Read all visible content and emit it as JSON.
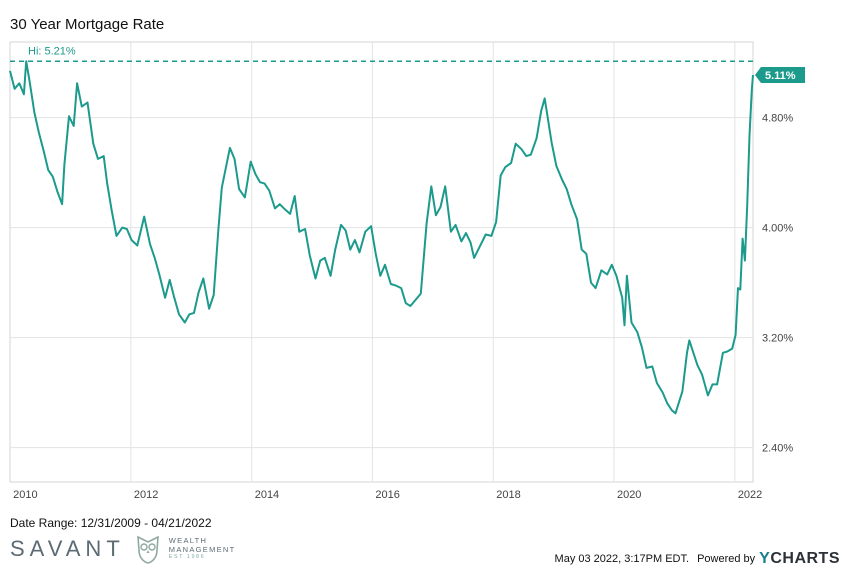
{
  "chart_data": {
    "type": "line",
    "title": "30 Year Mortgage Rate",
    "xlabel": "",
    "ylabel": "",
    "x_range": [
      "2009-12-31",
      "2022-04-21"
    ],
    "ylim": [
      2.15,
      5.35
    ],
    "y_ticks": [
      2.4,
      3.2,
      4.0,
      4.8
    ],
    "y_tick_labels": [
      "2.40%",
      "3.20%",
      "4.00%",
      "4.80%"
    ],
    "x_tick_labels": [
      "2010",
      "2012",
      "2014",
      "2016",
      "2018",
      "2020",
      "2022"
    ],
    "grid": true,
    "high": {
      "label": "Hi: 5.21%",
      "value": 5.21
    },
    "last": {
      "label": "5.11%",
      "value": 5.11
    },
    "series": [
      {
        "color": "#1c9a8c",
        "points": [
          [
            "2009-12-31",
            5.14
          ],
          [
            "2010-01-28",
            5.01
          ],
          [
            "2010-02-25",
            5.05
          ],
          [
            "2010-03-25",
            4.97
          ],
          [
            "2010-04-08",
            5.21
          ],
          [
            "2010-04-29",
            5.06
          ],
          [
            "2010-05-27",
            4.84
          ],
          [
            "2010-06-24",
            4.69
          ],
          [
            "2010-07-22",
            4.56
          ],
          [
            "2010-08-19",
            4.42
          ],
          [
            "2010-09-16",
            4.37
          ],
          [
            "2010-10-14",
            4.26
          ],
          [
            "2010-11-11",
            4.17
          ],
          [
            "2010-11-25",
            4.46
          ],
          [
            "2010-12-23",
            4.81
          ],
          [
            "2011-01-20",
            4.74
          ],
          [
            "2011-02-10",
            5.05
          ],
          [
            "2011-03-10",
            4.88
          ],
          [
            "2011-04-14",
            4.91
          ],
          [
            "2011-05-19",
            4.61
          ],
          [
            "2011-06-16",
            4.5
          ],
          [
            "2011-07-21",
            4.52
          ],
          [
            "2011-08-11",
            4.32
          ],
          [
            "2011-09-08",
            4.12
          ],
          [
            "2011-10-06",
            3.94
          ],
          [
            "2011-11-10",
            4.0
          ],
          [
            "2011-12-08",
            3.99
          ],
          [
            "2012-01-05",
            3.91
          ],
          [
            "2012-02-09",
            3.87
          ],
          [
            "2012-03-22",
            4.08
          ],
          [
            "2012-04-26",
            3.88
          ],
          [
            "2012-05-24",
            3.78
          ],
          [
            "2012-06-21",
            3.66
          ],
          [
            "2012-07-26",
            3.49
          ],
          [
            "2012-08-23",
            3.62
          ],
          [
            "2012-09-20",
            3.49
          ],
          [
            "2012-10-18",
            3.37
          ],
          [
            "2012-11-22",
            3.31
          ],
          [
            "2012-12-20",
            3.37
          ],
          [
            "2013-01-17",
            3.38
          ],
          [
            "2013-02-14",
            3.53
          ],
          [
            "2013-03-14",
            3.63
          ],
          [
            "2013-04-18",
            3.41
          ],
          [
            "2013-05-16",
            3.51
          ],
          [
            "2013-06-13",
            3.98
          ],
          [
            "2013-07-04",
            4.29
          ],
          [
            "2013-08-22",
            4.58
          ],
          [
            "2013-09-19",
            4.5
          ],
          [
            "2013-10-17",
            4.28
          ],
          [
            "2013-11-21",
            4.22
          ],
          [
            "2013-12-26",
            4.48
          ],
          [
            "2014-01-23",
            4.39
          ],
          [
            "2014-02-20",
            4.33
          ],
          [
            "2014-03-20",
            4.32
          ],
          [
            "2014-04-17",
            4.27
          ],
          [
            "2014-05-22",
            4.14
          ],
          [
            "2014-06-19",
            4.17
          ],
          [
            "2014-07-24",
            4.13
          ],
          [
            "2014-08-21",
            4.1
          ],
          [
            "2014-09-18",
            4.23
          ],
          [
            "2014-10-16",
            3.97
          ],
          [
            "2014-11-20",
            3.99
          ],
          [
            "2014-12-18",
            3.8
          ],
          [
            "2015-01-22",
            3.63
          ],
          [
            "2015-02-19",
            3.76
          ],
          [
            "2015-03-19",
            3.78
          ],
          [
            "2015-04-23",
            3.65
          ],
          [
            "2015-05-21",
            3.84
          ],
          [
            "2015-06-25",
            4.02
          ],
          [
            "2015-07-23",
            3.98
          ],
          [
            "2015-08-20",
            3.84
          ],
          [
            "2015-09-17",
            3.91
          ],
          [
            "2015-10-15",
            3.82
          ],
          [
            "2015-11-19",
            3.97
          ],
          [
            "2015-12-24",
            4.01
          ],
          [
            "2016-01-21",
            3.81
          ],
          [
            "2016-02-18",
            3.65
          ],
          [
            "2016-03-17",
            3.73
          ],
          [
            "2016-04-21",
            3.59
          ],
          [
            "2016-05-19",
            3.58
          ],
          [
            "2016-06-23",
            3.56
          ],
          [
            "2016-07-21",
            3.45
          ],
          [
            "2016-08-18",
            3.43
          ],
          [
            "2016-09-22",
            3.48
          ],
          [
            "2016-10-20",
            3.52
          ],
          [
            "2016-11-24",
            4.03
          ],
          [
            "2016-12-22",
            4.3
          ],
          [
            "2017-01-19",
            4.09
          ],
          [
            "2017-02-16",
            4.15
          ],
          [
            "2017-03-16",
            4.3
          ],
          [
            "2017-04-20",
            3.97
          ],
          [
            "2017-05-18",
            4.02
          ],
          [
            "2017-06-22",
            3.9
          ],
          [
            "2017-07-20",
            3.96
          ],
          [
            "2017-08-17",
            3.89
          ],
          [
            "2017-09-07",
            3.78
          ],
          [
            "2017-10-19",
            3.88
          ],
          [
            "2017-11-16",
            3.95
          ],
          [
            "2017-12-21",
            3.94
          ],
          [
            "2018-01-18",
            4.04
          ],
          [
            "2018-02-15",
            4.38
          ],
          [
            "2018-03-15",
            4.44
          ],
          [
            "2018-04-19",
            4.47
          ],
          [
            "2018-05-17",
            4.61
          ],
          [
            "2018-06-21",
            4.57
          ],
          [
            "2018-07-19",
            4.52
          ],
          [
            "2018-08-16",
            4.53
          ],
          [
            "2018-09-20",
            4.65
          ],
          [
            "2018-10-18",
            4.85
          ],
          [
            "2018-11-08",
            4.94
          ],
          [
            "2018-12-20",
            4.62
          ],
          [
            "2019-01-17",
            4.45
          ],
          [
            "2019-02-21",
            4.35
          ],
          [
            "2019-03-21",
            4.28
          ],
          [
            "2019-04-18",
            4.17
          ],
          [
            "2019-05-23",
            4.06
          ],
          [
            "2019-06-20",
            3.84
          ],
          [
            "2019-07-18",
            3.81
          ],
          [
            "2019-08-15",
            3.6
          ],
          [
            "2019-09-12",
            3.56
          ],
          [
            "2019-10-17",
            3.69
          ],
          [
            "2019-11-21",
            3.66
          ],
          [
            "2019-12-19",
            3.73
          ],
          [
            "2020-01-16",
            3.65
          ],
          [
            "2020-02-20",
            3.49
          ],
          [
            "2020-03-05",
            3.29
          ],
          [
            "2020-03-19",
            3.65
          ],
          [
            "2020-04-16",
            3.31
          ],
          [
            "2020-05-21",
            3.24
          ],
          [
            "2020-06-18",
            3.13
          ],
          [
            "2020-07-16",
            2.98
          ],
          [
            "2020-08-20",
            2.99
          ],
          [
            "2020-09-17",
            2.87
          ],
          [
            "2020-10-22",
            2.8
          ],
          [
            "2020-11-19",
            2.72
          ],
          [
            "2020-12-17",
            2.67
          ],
          [
            "2021-01-07",
            2.65
          ],
          [
            "2021-02-18",
            2.81
          ],
          [
            "2021-03-18",
            3.09
          ],
          [
            "2021-04-01",
            3.18
          ],
          [
            "2021-05-20",
            3.0
          ],
          [
            "2021-06-17",
            2.93
          ],
          [
            "2021-07-22",
            2.78
          ],
          [
            "2021-08-19",
            2.86
          ],
          [
            "2021-09-16",
            2.86
          ],
          [
            "2021-10-21",
            3.09
          ],
          [
            "2021-11-18",
            3.1
          ],
          [
            "2021-12-16",
            3.12
          ],
          [
            "2022-01-06",
            3.22
          ],
          [
            "2022-01-20",
            3.56
          ],
          [
            "2022-02-03",
            3.55
          ],
          [
            "2022-02-17",
            3.92
          ],
          [
            "2022-03-03",
            3.76
          ],
          [
            "2022-03-17",
            4.16
          ],
          [
            "2022-03-31",
            4.67
          ],
          [
            "2022-04-14",
            5.0
          ],
          [
            "2022-04-21",
            5.11
          ]
        ]
      }
    ]
  },
  "footer": {
    "date_range": "Date Range: 12/31/2009 - 04/21/2022",
    "timestamp": "May 03 2022, 3:17PM EDT.",
    "powered_by": "Powered by",
    "ycharts_y": "Y",
    "ycharts_rest": "CHARTS"
  },
  "brand": {
    "name": "SAVANT",
    "line1": "WEALTH",
    "line2": "MANAGEMENT",
    "est": "EST 1986"
  },
  "colors": {
    "line": "#1c9a8c",
    "grid": "#e3e3e3",
    "text": "#444444"
  }
}
